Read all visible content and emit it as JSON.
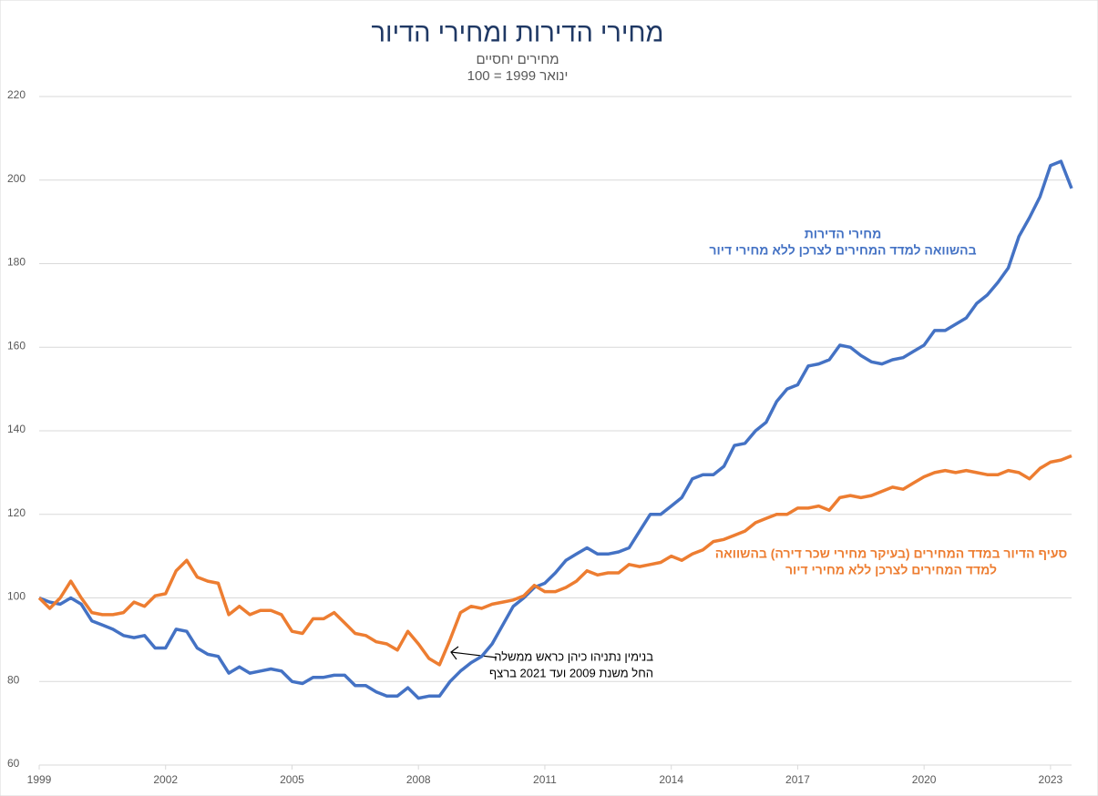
{
  "chart_data": {
    "type": "line",
    "title": "מחירי הדירות ומחירי הדיור",
    "subtitle": [
      "מחירים יחסיים",
      "ינואר 1999 = 100"
    ],
    "xlim": [
      1999,
      2023.5
    ],
    "xticks": [
      1999,
      2002,
      2005,
      2008,
      2011,
      2014,
      2017,
      2020,
      2023
    ],
    "ylim": [
      60,
      220
    ],
    "yticks": [
      60,
      80,
      100,
      120,
      140,
      160,
      180,
      200,
      220
    ],
    "grid": true,
    "x": [
      1999,
      1999.25,
      1999.5,
      1999.75,
      2000,
      2000.25,
      2000.5,
      2000.75,
      2001,
      2001.25,
      2001.5,
      2001.75,
      2002,
      2002.25,
      2002.5,
      2002.75,
      2003,
      2003.25,
      2003.5,
      2003.75,
      2004,
      2004.25,
      2004.5,
      2004.75,
      2005,
      2005.25,
      2005.5,
      2005.75,
      2006,
      2006.25,
      2006.5,
      2006.75,
      2007,
      2007.25,
      2007.5,
      2007.75,
      2008,
      2008.25,
      2008.5,
      2008.75,
      2009,
      2009.25,
      2009.5,
      2009.75,
      2010,
      2010.25,
      2010.5,
      2010.75,
      2011,
      2011.25,
      2011.5,
      2011.75,
      2012,
      2012.25,
      2012.5,
      2012.75,
      2013,
      2013.25,
      2013.5,
      2013.75,
      2014,
      2014.25,
      2014.5,
      2014.75,
      2015,
      2015.25,
      2015.5,
      2015.75,
      2016,
      2016.25,
      2016.5,
      2016.75,
      2017,
      2017.25,
      2017.5,
      2017.75,
      2018,
      2018.25,
      2018.5,
      2018.75,
      2019,
      2019.25,
      2019.5,
      2019.75,
      2020,
      2020.25,
      2020.5,
      2020.75,
      2021,
      2021.25,
      2021.5,
      2021.75,
      2022,
      2022.25,
      2022.5,
      2022.75,
      2023,
      2023.25,
      2023.5
    ],
    "series": [
      {
        "label_lines": [
          "מחירי הדירות",
          "בהשוואה למדד המחירים לצרכן ללא מחירי דיור"
        ],
        "color": "#4472c4",
        "values": [
          100,
          99,
          98.5,
          100,
          98.5,
          94.5,
          93.5,
          92.5,
          91,
          90.5,
          91,
          88,
          88,
          92.5,
          92,
          88,
          86.5,
          86,
          82,
          83.5,
          82,
          82.5,
          83,
          82.5,
          80,
          79.5,
          81,
          81,
          81.5,
          81.5,
          79,
          79,
          77.5,
          76.5,
          76.5,
          78.5,
          76,
          76.5,
          76.5,
          80,
          82.5,
          84.5,
          86,
          89,
          93.5,
          98,
          100,
          102.5,
          103.5,
          106,
          109,
          110.5,
          112,
          110.5,
          110.5,
          111,
          112,
          116,
          120,
          120,
          122,
          124,
          128.5,
          129.5,
          129.5,
          131.5,
          136.5,
          137,
          140,
          142,
          147,
          150,
          151,
          155.5,
          156,
          157,
          160.5,
          160,
          158,
          156.5,
          156,
          157,
          157.5,
          159,
          160.5,
          164,
          164,
          165.5,
          167,
          170.5,
          172.5,
          175.5,
          179,
          186.5,
          191,
          196,
          203.5,
          204.5,
          198
        ]
      },
      {
        "label_lines": [
          "סעיף הדיור במדד המחירים (בעיקר מחירי שכר דירה) בהשוואה",
          "למדד המחירים לצרכן ללא מחירי דיור"
        ],
        "color": "#ed7d31",
        "values": [
          100,
          97.5,
          100,
          104,
          100,
          96.5,
          96,
          96,
          96.5,
          99,
          98,
          100.5,
          101,
          106.5,
          109,
          105,
          104,
          103.5,
          96,
          98,
          96,
          97,
          97,
          96,
          92,
          91.5,
          95,
          95,
          96.5,
          94,
          91.5,
          91,
          89.5,
          89,
          87.5,
          92,
          89,
          85.5,
          84,
          90,
          96.5,
          98,
          97.5,
          98.5,
          99,
          99.5,
          100.5,
          103,
          101.5,
          101.5,
          102.5,
          104,
          106.5,
          105.5,
          106,
          106,
          108,
          107.5,
          108,
          108.5,
          110,
          109,
          110.5,
          111.5,
          113.5,
          114,
          115,
          116,
          118,
          119,
          120,
          120,
          121.5,
          121.5,
          122,
          121,
          124,
          124.5,
          124,
          124.5,
          125.5,
          126.5,
          126,
          127.5,
          129,
          130,
          130.5,
          130,
          130.5,
          130,
          129.5,
          129.5,
          130.5,
          130,
          128.5,
          131,
          132.5,
          133,
          134
        ]
      }
    ],
    "annotations": [
      {
        "lines": [
          "בנימין נתניהו כיהן כראש ממשלה",
          "החל משנת 2009 ועד 2021 ברצף"
        ]
      }
    ]
  }
}
